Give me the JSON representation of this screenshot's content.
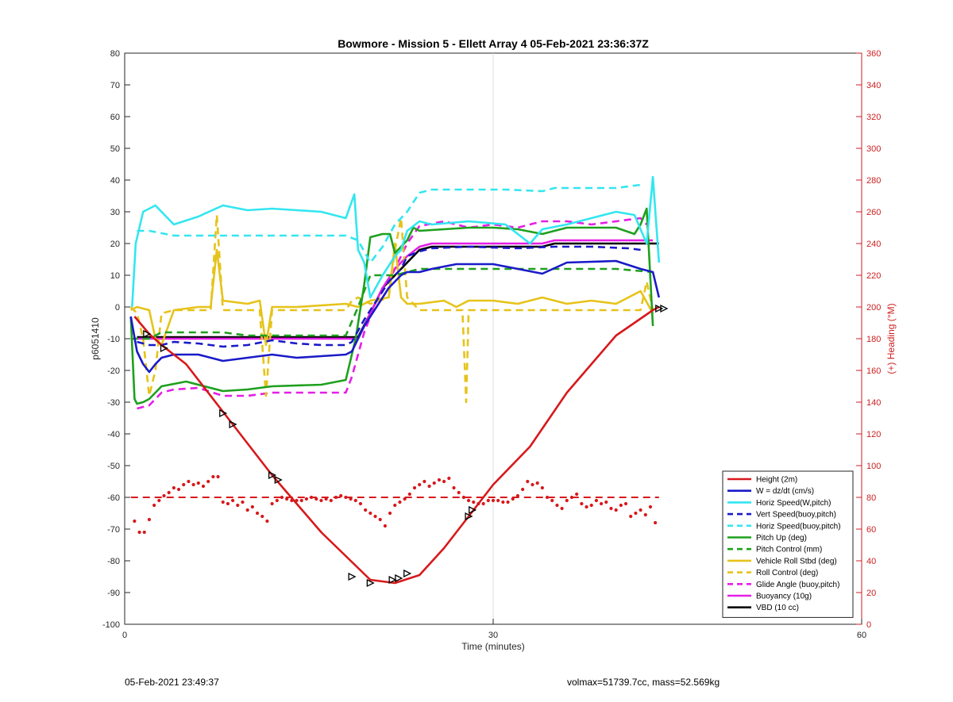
{
  "chart_data": {
    "type": "line",
    "title": "Bowmore - Mission 5 - Ellett Array 4 05-Feb-2021 23:36:37Z",
    "xlabel": "Time (minutes)",
    "ylabel": "p6051410",
    "y2label": "(+) Heading (°M)",
    "xlim": [
      0,
      60
    ],
    "ylim": [
      -100,
      80
    ],
    "y2lim": [
      0,
      360
    ],
    "xticks": [
      "0",
      "30",
      "60"
    ],
    "yticks": [
      80,
      70,
      60,
      50,
      40,
      30,
      20,
      10,
      0,
      -10,
      -20,
      -30,
      -40,
      -50,
      -60,
      -70,
      -80,
      -90,
      -100
    ],
    "y2ticks": [
      360,
      340,
      320,
      300,
      280,
      260,
      240,
      220,
      200,
      180,
      160,
      140,
      120,
      100,
      80,
      60,
      40,
      20,
      0
    ],
    "grid": "x-only",
    "legend_position": "bottom-right",
    "colors": {
      "red": "#d7191c",
      "blue": "#1a1ac8",
      "cyan": "#33e6f0",
      "green": "#1ea01e",
      "yellow": "#e6c31a",
      "magenta": "#e61ee6",
      "black": "#000000",
      "right_axis": "#cc1f1f"
    },
    "series": [
      {
        "name": "Height (2m)",
        "color": "#d7191c",
        "dash": false,
        "x": [
          0.8,
          2,
          3,
          5,
          8,
          12,
          16,
          20,
          22,
          24,
          26,
          28,
          30,
          33,
          36,
          40,
          43,
          43.5
        ],
        "y": [
          -3,
          -8.5,
          -12,
          -18,
          -33,
          -53,
          -71,
          -86,
          -87,
          -84.5,
          -76,
          -66,
          -56,
          -44,
          -27,
          -9,
          -1,
          0
        ]
      },
      {
        "name": "W = dz/dt (cm/s)",
        "color": "#1a1ac8",
        "dash": false,
        "x": [
          0.5,
          1,
          1.5,
          2,
          2.5,
          3,
          4,
          6,
          8,
          10,
          12,
          14,
          16,
          18,
          18.5,
          19.5,
          20.5,
          21.5,
          22.5,
          23,
          24,
          25,
          27,
          30,
          32,
          34,
          36,
          40,
          42,
          43,
          43.5
        ],
        "y": [
          -3,
          -14,
          -18,
          -20.5,
          -18,
          -16,
          -15,
          -15,
          -17,
          -16,
          -15,
          -16,
          -15.5,
          -15,
          -14,
          -6,
          0,
          6,
          10,
          11,
          11,
          12,
          13.5,
          13.5,
          12,
          10.5,
          14,
          14.5,
          12,
          11,
          3
        ]
      },
      {
        "name": "Horiz Speed(W,pitch)",
        "color": "#33e6f0",
        "dash": false,
        "x": [
          0.6,
          0.9,
          1.5,
          2.5,
          3,
          4,
          6,
          8,
          10,
          12,
          14,
          16,
          18,
          18.7,
          19,
          19.5,
          20,
          21,
          22,
          22.5,
          23,
          24,
          25,
          28,
          31,
          33,
          34,
          36,
          38,
          40,
          41.5,
          42.5,
          43,
          43.5
        ],
        "y": [
          0,
          20,
          30,
          32,
          30,
          26,
          28.5,
          32,
          30.5,
          31,
          30.5,
          30,
          28,
          35.5,
          18,
          14,
          3,
          10,
          16,
          18,
          24,
          27,
          26,
          27,
          26,
          20,
          24.5,
          26,
          28,
          30,
          29,
          20,
          41,
          14
        ]
      },
      {
        "name": "Vert Speed(buoy,pitch)",
        "color": "#1a1ac8",
        "dash": true,
        "x": [
          1,
          2,
          3,
          4,
          6,
          8,
          10,
          12,
          14,
          16,
          18,
          18.5,
          19.5,
          20.5,
          21.5,
          22.5,
          23,
          24,
          25,
          28,
          32,
          35,
          38,
          41,
          42
        ],
        "y": [
          -11,
          -12,
          -12,
          -11,
          -11.5,
          -12.5,
          -12,
          -10.5,
          -11.5,
          -12,
          -12,
          -11,
          -4,
          2,
          8,
          12,
          16,
          17.5,
          18.5,
          19,
          18.5,
          19,
          19,
          18.5,
          18
        ]
      },
      {
        "name": "Horiz Speed(buoy,pitch)",
        "color": "#33e6f0",
        "dash": true,
        "x": [
          1,
          2,
          4,
          6,
          8,
          10,
          12,
          14,
          16,
          18,
          19,
          20,
          21,
          22,
          23,
          24,
          25,
          28,
          31,
          34,
          35,
          36,
          38,
          40,
          42
        ],
        "y": [
          24,
          24,
          22.5,
          22.5,
          22.5,
          22.5,
          22.5,
          22.5,
          22.5,
          22.5,
          21,
          14,
          19,
          26,
          30,
          36,
          37,
          37,
          37,
          36.5,
          37.5,
          37.5,
          37.5,
          37.5,
          38.5
        ]
      },
      {
        "name": "Pitch Up (deg)",
        "color": "#1ea01e",
        "dash": false,
        "x": [
          0.5,
          0.8,
          1,
          1.5,
          2,
          2.5,
          3,
          5,
          8,
          10,
          12,
          16,
          18,
          18.8,
          19.5,
          20,
          21,
          21.6,
          22,
          23,
          23.5,
          24,
          26,
          28,
          30,
          32,
          34,
          36,
          40,
          41.5,
          42,
          42.5,
          43
        ],
        "y": [
          -3,
          -29,
          -30.5,
          -30,
          -29,
          -27,
          -25,
          -23.5,
          -26.5,
          -26,
          -25,
          -24.5,
          -23,
          -10,
          7,
          22,
          23,
          23,
          17,
          21,
          25,
          24,
          24.5,
          25,
          25,
          24.5,
          23,
          25,
          25,
          23,
          26,
          31,
          -6
        ]
      },
      {
        "name": "Pitch Control (mm)",
        "color": "#1ea01e",
        "dash": true,
        "x": [
          0.5,
          2,
          3,
          5,
          8,
          10,
          12,
          16,
          18,
          19,
          20,
          22,
          23,
          24,
          25,
          28,
          32,
          36,
          40,
          43
        ],
        "y": [
          -10,
          -10,
          -8,
          -8,
          -8,
          -9,
          -9,
          -9,
          -9,
          0,
          10,
          10,
          11,
          12,
          12,
          12,
          12,
          12,
          12,
          11
        ]
      },
      {
        "name": "Vehicle Roll Stbd (deg)",
        "color": "#e6c31a",
        "dash": false,
        "x": [
          0.5,
          1,
          2,
          2.5,
          3,
          4,
          6,
          7,
          7.5,
          8,
          10,
          11,
          11.5,
          12,
          14,
          18,
          19,
          20,
          21.5,
          22,
          22.5,
          23,
          24,
          26,
          27,
          28,
          30,
          32,
          34,
          36,
          38,
          40,
          42,
          43
        ],
        "y": [
          -1,
          0,
          -1,
          -10,
          -12,
          -1,
          0,
          0,
          18,
          2,
          1,
          2,
          -12,
          0,
          0,
          1,
          0,
          2,
          3,
          20,
          3,
          1,
          1,
          2,
          0,
          2,
          2,
          1,
          3,
          1,
          2,
          1,
          5,
          -2
        ]
      },
      {
        "name": "Roll Control (deg)",
        "color": "#e6c31a",
        "dash": true,
        "x": [
          0.5,
          1,
          1.5,
          2,
          2.5,
          3,
          4,
          6,
          7,
          7.5,
          8,
          10,
          11,
          11.5,
          12,
          18,
          18.5,
          19,
          20,
          21.5,
          22,
          22.5,
          23,
          24,
          25,
          26,
          27.5,
          27.8,
          28,
          30,
          32,
          34,
          36,
          40,
          42,
          42.5,
          43
        ],
        "y": [
          0,
          -2,
          -10,
          -28,
          -20,
          -2,
          -1,
          -1,
          -1,
          29,
          -1,
          -1,
          -1,
          -28,
          -1,
          -1,
          2,
          3,
          1,
          3,
          18,
          28,
          3,
          -1,
          -1,
          -1,
          -1,
          -30,
          -1,
          -1,
          -1,
          -1,
          -1,
          -1,
          -1,
          8,
          -1
        ]
      },
      {
        "name": "Glide Angle (buoy,pitch)",
        "color": "#e61ee6",
        "dash": true,
        "x": [
          1,
          2,
          2.5,
          3,
          4,
          6,
          8,
          10,
          12,
          14,
          16,
          18,
          18.5,
          19.5,
          20.5,
          21.5,
          22.5,
          23,
          24,
          26,
          28,
          30,
          32,
          34,
          36,
          38,
          40,
          42,
          42.5
        ],
        "y": [
          -32,
          -31,
          -29,
          -27,
          -26,
          -25.5,
          -28,
          -28,
          -27,
          -27,
          -27,
          -27,
          -22,
          -8,
          2,
          8,
          16,
          20,
          25.5,
          27,
          25,
          26,
          25,
          27,
          27,
          26,
          27,
          28,
          26
        ]
      },
      {
        "name": "Buoyancy (10g)",
        "color": "#e61ee6",
        "dash": false,
        "x": [
          1,
          19,
          20,
          21,
          22,
          23,
          24,
          25,
          30,
          34,
          35,
          40,
          43
        ],
        "y": [
          -10,
          -10,
          -2,
          6,
          12,
          16,
          19,
          20,
          20,
          20,
          21,
          21,
          21
        ]
      },
      {
        "name": "VBD (10 cc)",
        "color": "#000000",
        "dash": false,
        "x": [
          1,
          19,
          20,
          21,
          22,
          23,
          24,
          25,
          30,
          34,
          35,
          40,
          43.5
        ],
        "y": [
          -9.5,
          -9.5,
          -2,
          6,
          10,
          14,
          18,
          19,
          19,
          19,
          20,
          20,
          20
        ]
      }
    ],
    "heading_series": {
      "axis": "right",
      "color": "#d7191c",
      "reference_heading": 80,
      "reference_x": [
        0.5,
        43.5
      ],
      "x": [
        0.8,
        1.2,
        1.6,
        2.0,
        2.4,
        2.8,
        3.2,
        3.6,
        4.0,
        4.4,
        4.8,
        5.2,
        5.6,
        6.0,
        6.4,
        6.8,
        7.2,
        7.6,
        8.0,
        8.4,
        8.8,
        9.2,
        9.6,
        10.0,
        10.4,
        10.8,
        11.2,
        11.6,
        12.0,
        12.4,
        12.8,
        13.2,
        13.6,
        14.0,
        14.4,
        14.8,
        15.2,
        15.6,
        16.0,
        16.4,
        16.8,
        17.2,
        17.6,
        18.0,
        18.4,
        18.8,
        19.2,
        19.6,
        20.0,
        20.4,
        20.8,
        21.2,
        21.6,
        22.0,
        22.4,
        22.8,
        23.2,
        23.6,
        24.0,
        24.4,
        24.8,
        25.2,
        25.6,
        26.0,
        26.4,
        26.8,
        27.2,
        27.6,
        28.0,
        28.4,
        28.8,
        29.2,
        29.6,
        30.0,
        30.4,
        30.8,
        31.2,
        31.6,
        32.0,
        32.4,
        32.8,
        33.2,
        33.6,
        34.0,
        34.4,
        34.8,
        35.2,
        35.6,
        36.0,
        36.4,
        36.8,
        37.2,
        37.6,
        38.0,
        38.4,
        38.8,
        39.2,
        39.6,
        40.0,
        40.4,
        40.8,
        41.2,
        41.6,
        42.0,
        42.4,
        42.8,
        43.2
      ],
      "y": [
        65,
        58,
        58,
        66,
        75,
        78,
        81,
        83,
        86,
        85,
        88,
        90,
        88,
        89,
        87,
        90,
        93,
        93,
        77,
        76,
        78,
        75,
        77,
        72,
        74,
        70,
        68,
        65,
        76,
        78,
        80,
        79,
        78,
        78,
        78,
        79,
        80,
        79,
        78,
        79,
        78,
        80,
        81,
        80,
        79,
        78,
        76,
        72,
        70,
        68,
        66,
        62,
        70,
        75,
        77,
        79,
        82,
        86,
        88,
        90,
        87,
        89,
        91,
        90,
        92,
        86,
        83,
        80,
        78,
        77,
        76,
        76,
        78,
        78,
        78,
        77,
        77,
        79,
        81,
        85,
        90,
        88,
        89,
        86,
        80,
        78,
        75,
        73,
        78,
        80,
        82,
        76,
        74,
        75,
        78,
        76,
        77,
        73,
        72,
        75,
        76,
        68,
        70,
        72,
        69,
        74,
        64
      ]
    },
    "markers": [
      {
        "x": 1.8,
        "y": -8.5
      },
      {
        "x": 3.2,
        "y": -13
      },
      {
        "x": 8,
        "y": -33.5
      },
      {
        "x": 8.8,
        "y": -37
      },
      {
        "x": 12,
        "y": -53
      },
      {
        "x": 12.5,
        "y": -54.5
      },
      {
        "x": 18.5,
        "y": -85
      },
      {
        "x": 20,
        "y": -87
      },
      {
        "x": 21.8,
        "y": -86
      },
      {
        "x": 22.3,
        "y": -85.5
      },
      {
        "x": 23,
        "y": -84
      },
      {
        "x": 28,
        "y": -66
      },
      {
        "x": 28.3,
        "y": -64
      },
      {
        "x": 43.5,
        "y": -0.5
      },
      {
        "x": 43.9,
        "y": -0.5
      }
    ]
  },
  "footer": {
    "timestamp": "05-Feb-2021 23:49:37",
    "vehicle_info": "volmax=51739.7cc, mass=52.569kg"
  }
}
